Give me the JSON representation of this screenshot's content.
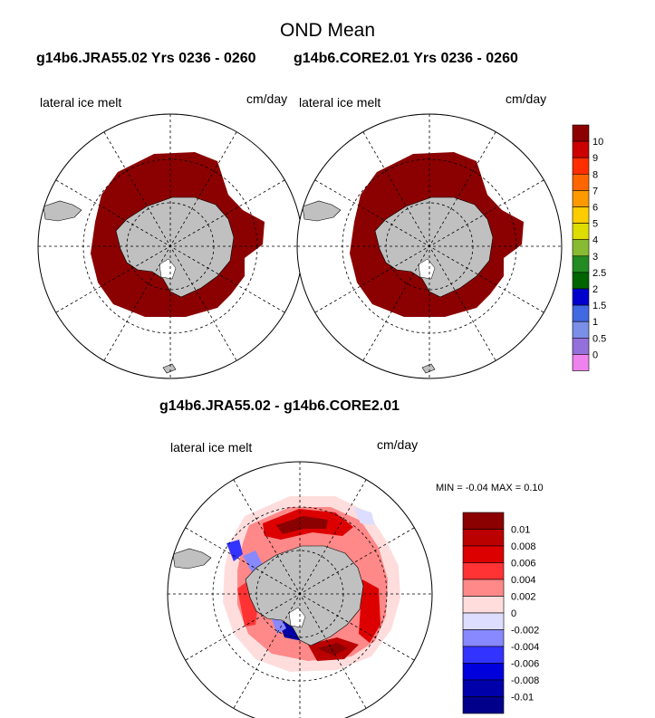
{
  "title": "OND Mean",
  "top_left": {
    "header": "g14b6.JRA55.02  Yrs 0236 - 0260",
    "variable": "lateral ice melt",
    "units": "cm/day"
  },
  "top_right": {
    "header": "g14b6.CORE2.01  Yrs 0236 - 0260",
    "variable": "lateral ice melt",
    "units": "cm/day"
  },
  "diff": {
    "header": "g14b6.JRA55.02 - g14b6.CORE2.01",
    "variable": "lateral ice melt",
    "units": "cm/day",
    "min_max": "MIN =  -0.04 MAX =   0.10"
  },
  "legend_top": {
    "labels": [
      "10",
      "9",
      "8",
      "7",
      "6",
      "5",
      "4",
      "3",
      "2.5",
      "2",
      "1.5",
      "1",
      "0.5",
      "0"
    ],
    "colors": [
      "#8b0000",
      "#cc0000",
      "#ff2d00",
      "#ff6600",
      "#ff9900",
      "#ffcc00",
      "#dddd00",
      "#88bb33",
      "#228b22",
      "#006400",
      "#0000cd",
      "#4169e1",
      "#7b8ee8",
      "#9370db",
      "#ee82ee"
    ]
  },
  "legend_diff": {
    "labels": [
      "0.01",
      "0.008",
      "0.006",
      "0.004",
      "0.002",
      "0",
      "-0.002",
      "-0.004",
      "-0.006",
      "-0.008",
      "-0.01"
    ],
    "colors": [
      "#8b0000",
      "#bb0000",
      "#dd0000",
      "#ff3333",
      "#ff8888",
      "#ffdddd",
      "#ddddff",
      "#8888ff",
      "#3333ff",
      "#0000dd",
      "#0000aa",
      "#00008b"
    ]
  },
  "colors": {
    "ocean": "#ffffff",
    "land": "#c0c0c0",
    "ice_melt_high": "#8b0000",
    "grid": "#000000"
  }
}
